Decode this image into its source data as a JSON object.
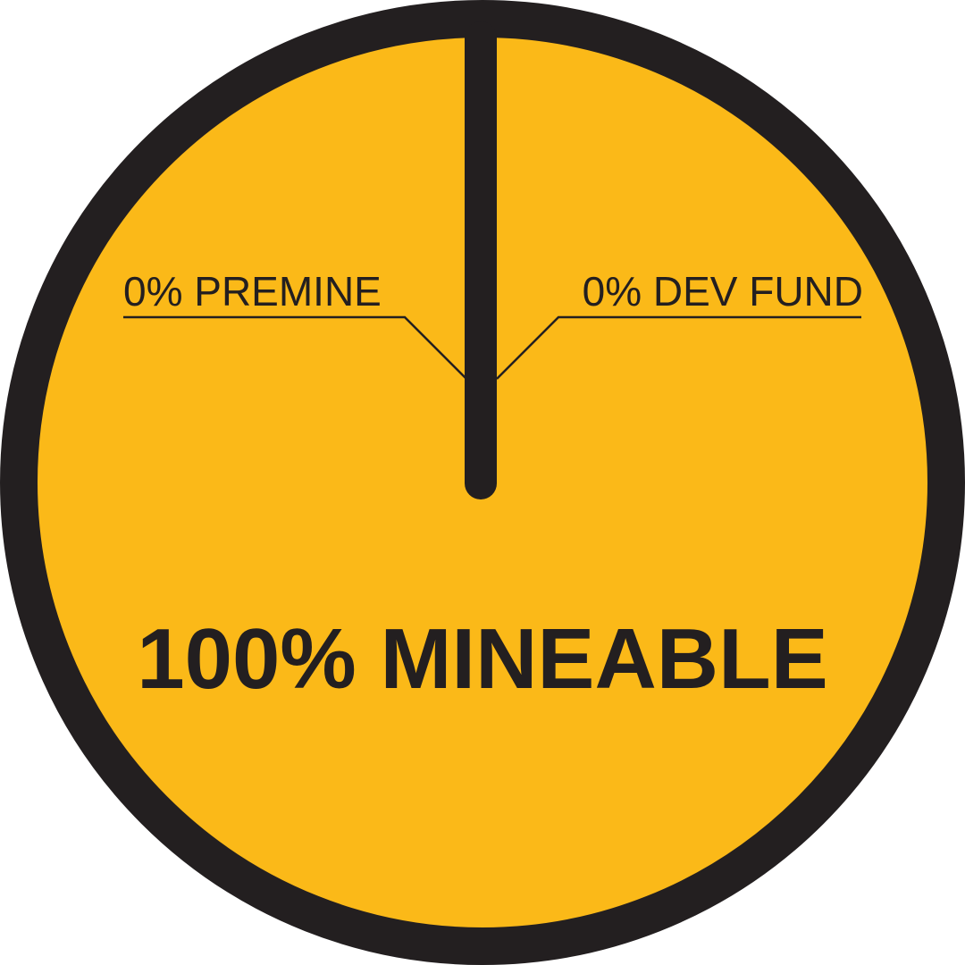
{
  "chart_data": {
    "type": "pie",
    "slices": [
      {
        "label": "0% PREMINE",
        "value": 0
      },
      {
        "label": "0% DEV FUND",
        "value": 0
      },
      {
        "label": "100% MINEABLE",
        "value": 100
      }
    ],
    "colors": {
      "fill": "#FBB918",
      "stroke": "#231F20"
    }
  }
}
